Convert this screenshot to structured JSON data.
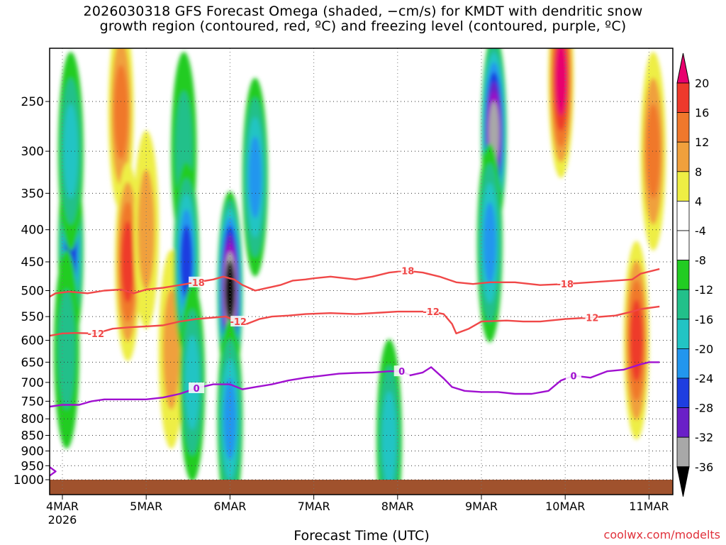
{
  "title_line1": "2026030318 GFS Forecast Omega (shaded, −cm/s) for KMDT with dendritic snow",
  "title_line2": "growth region (contoured, red, ºC) and freezing level (contoured, purple, ºC)",
  "xlabel": "Forecast Time (UTC)",
  "credit": "coolwx.com/modelts",
  "chart_data": {
    "type": "heatmap",
    "title": "2026030318 GFS Forecast Omega (shaded, −cm/s) for KMDT with dendritic snow growth region (contoured, red, ºC) and freezing level (contoured, purple, ºC)",
    "xlabel": "Forecast Time (UTC)",
    "ylabel": "",
    "x_ticks": [
      "4MAR",
      "5MAR",
      "6MAR",
      "7MAR",
      "8MAR",
      "9MAR",
      "10MAR",
      "11MAR"
    ],
    "x_tick_sublabel": "2026",
    "xlim_days": [
      3.75,
      11.125
    ],
    "y_ticks": [
      250,
      300,
      350,
      400,
      450,
      500,
      550,
      600,
      650,
      700,
      750,
      800,
      850,
      900,
      950,
      1000
    ],
    "ylim": [
      200,
      1010
    ],
    "y_scale": "log",
    "grid": true,
    "colorbar": {
      "labels": [
        20,
        16,
        12,
        8,
        4,
        -4,
        -8,
        -12,
        -16,
        -20,
        -24,
        -28,
        -32,
        -36
      ],
      "colors": [
        "#e8006e",
        "#ee3a2c",
        "#f0782c",
        "#f0a03c",
        "#e0c038",
        "#eeee44",
        "#ffffff",
        "#22cc22",
        "#22c08a",
        "#22c4c4",
        "#2296ee",
        "#1e3ee0",
        "#6a20c8",
        "#9c10c8",
        "#a8a8a8",
        "#000000"
      ]
    },
    "series": [
      {
        "name": "-18",
        "color": "#f04848",
        "points": [
          [
            3.75,
            520
          ],
          [
            3.92,
            505
          ],
          [
            4.08,
            502
          ],
          [
            4.3,
            505
          ],
          [
            4.5,
            500
          ],
          [
            4.7,
            498
          ],
          [
            4.85,
            505
          ],
          [
            5.0,
            498
          ],
          [
            5.2,
            495
          ],
          [
            5.4,
            490
          ],
          [
            5.6,
            485
          ],
          [
            5.8,
            480
          ],
          [
            5.92,
            475
          ],
          [
            6.05,
            480
          ],
          [
            6.15,
            490
          ],
          [
            6.3,
            500
          ],
          [
            6.45,
            495
          ],
          [
            6.6,
            490
          ],
          [
            6.75,
            482
          ],
          [
            6.9,
            480
          ],
          [
            7.0,
            478
          ],
          [
            7.2,
            475
          ],
          [
            7.5,
            480
          ],
          [
            7.7,
            475
          ],
          [
            7.9,
            468
          ],
          [
            8.1,
            465
          ],
          [
            8.3,
            468
          ],
          [
            8.5,
            475
          ],
          [
            8.7,
            485
          ],
          [
            8.9,
            488
          ],
          [
            9.1,
            485
          ],
          [
            9.4,
            485
          ],
          [
            9.7,
            490
          ],
          [
            10.0,
            488
          ],
          [
            10.3,
            485
          ],
          [
            10.6,
            482
          ],
          [
            10.8,
            480
          ],
          [
            10.9,
            470
          ],
          [
            11.125,
            462
          ]
        ]
      },
      {
        "name": "-12",
        "color": "#f04848",
        "points": [
          [
            3.75,
            600
          ],
          [
            3.85,
            590
          ],
          [
            4.0,
            585
          ],
          [
            4.15,
            584
          ],
          [
            4.4,
            585
          ],
          [
            4.6,
            575
          ],
          [
            4.8,
            572
          ],
          [
            5.0,
            570
          ],
          [
            5.2,
            568
          ],
          [
            5.4,
            560
          ],
          [
            5.6,
            555
          ],
          [
            5.8,
            552
          ],
          [
            5.95,
            550
          ],
          [
            6.1,
            560
          ],
          [
            6.2,
            565
          ],
          [
            6.35,
            555
          ],
          [
            6.5,
            550
          ],
          [
            6.7,
            548
          ],
          [
            6.9,
            545
          ],
          [
            7.2,
            543
          ],
          [
            7.5,
            545
          ],
          [
            7.8,
            542
          ],
          [
            8.0,
            540
          ],
          [
            8.2,
            540
          ],
          [
            8.4,
            540
          ],
          [
            8.55,
            545
          ],
          [
            8.65,
            565
          ],
          [
            8.7,
            585
          ],
          [
            8.85,
            575
          ],
          [
            9.0,
            560
          ],
          [
            9.3,
            558
          ],
          [
            9.5,
            560
          ],
          [
            9.7,
            560
          ],
          [
            10.0,
            555
          ],
          [
            10.3,
            552
          ],
          [
            10.6,
            548
          ],
          [
            10.8,
            540
          ],
          [
            10.9,
            535
          ],
          [
            11.125,
            530
          ]
        ]
      },
      {
        "name": "0",
        "color": "#a010d0",
        "points": [
          [
            3.75,
            770
          ],
          [
            3.85,
            765
          ],
          [
            4.0,
            760
          ],
          [
            4.2,
            760
          ],
          [
            4.35,
            750
          ],
          [
            4.5,
            745
          ],
          [
            4.65,
            745
          ],
          [
            4.8,
            745
          ],
          [
            5.0,
            745
          ],
          [
            5.2,
            740
          ],
          [
            5.4,
            730
          ],
          [
            5.6,
            715
          ],
          [
            5.8,
            705
          ],
          [
            6.0,
            705
          ],
          [
            6.15,
            718
          ],
          [
            6.3,
            712
          ],
          [
            6.5,
            705
          ],
          [
            6.7,
            695
          ],
          [
            6.9,
            688
          ],
          [
            7.1,
            683
          ],
          [
            7.3,
            678
          ],
          [
            7.5,
            676
          ],
          [
            7.7,
            675
          ],
          [
            7.9,
            672
          ],
          [
            8.05,
            672
          ],
          [
            8.15,
            682
          ],
          [
            8.3,
            675
          ],
          [
            8.4,
            662
          ],
          [
            8.55,
            690
          ],
          [
            8.65,
            712
          ],
          [
            8.8,
            722
          ],
          [
            9.0,
            725
          ],
          [
            9.2,
            725
          ],
          [
            9.4,
            730
          ],
          [
            9.6,
            730
          ],
          [
            9.8,
            722
          ],
          [
            9.95,
            695
          ],
          [
            10.1,
            683
          ],
          [
            10.3,
            688
          ],
          [
            10.5,
            672
          ],
          [
            10.7,
            668
          ],
          [
            10.9,
            655
          ],
          [
            11.0,
            650
          ],
          [
            11.125,
            650
          ]
        ]
      },
      {
        "name": "0",
        "color": "#a010d0",
        "points": [
          [
            3.75,
            940
          ],
          [
            3.85,
            955
          ],
          [
            3.92,
            970
          ],
          [
            3.85,
            985
          ],
          [
            3.75,
            995
          ]
        ]
      }
    ],
    "omega_cells": [
      {
        "day": 4.1,
        "p": 430,
        "v": -20
      },
      {
        "day": 4.1,
        "p": 300,
        "v": -12
      },
      {
        "day": 4.05,
        "p": 620,
        "v": -8
      },
      {
        "day": 4.7,
        "p": 260,
        "v": 12
      },
      {
        "day": 4.78,
        "p": 450,
        "v": 16
      },
      {
        "day": 5.0,
        "p": 400,
        "v": 8
      },
      {
        "day": 5.3,
        "p": 620,
        "v": 8
      },
      {
        "day": 5.45,
        "p": 300,
        "v": -8
      },
      {
        "day": 5.48,
        "p": 450,
        "v": -20
      },
      {
        "day": 5.55,
        "p": 700,
        "v": -12
      },
      {
        "day": 6.0,
        "p": 500,
        "v": -36
      },
      {
        "day": 6.0,
        "p": 800,
        "v": -16
      },
      {
        "day": 6.3,
        "p": 330,
        "v": -16
      },
      {
        "day": 7.9,
        "p": 860,
        "v": -12
      },
      {
        "day": 9.15,
        "p": 280,
        "v": -32
      },
      {
        "day": 9.1,
        "p": 420,
        "v": -16
      },
      {
        "day": 9.95,
        "p": 230,
        "v": 20
      },
      {
        "day": 10.85,
        "p": 600,
        "v": 16
      },
      {
        "day": 11.05,
        "p": 300,
        "v": 12
      }
    ]
  }
}
